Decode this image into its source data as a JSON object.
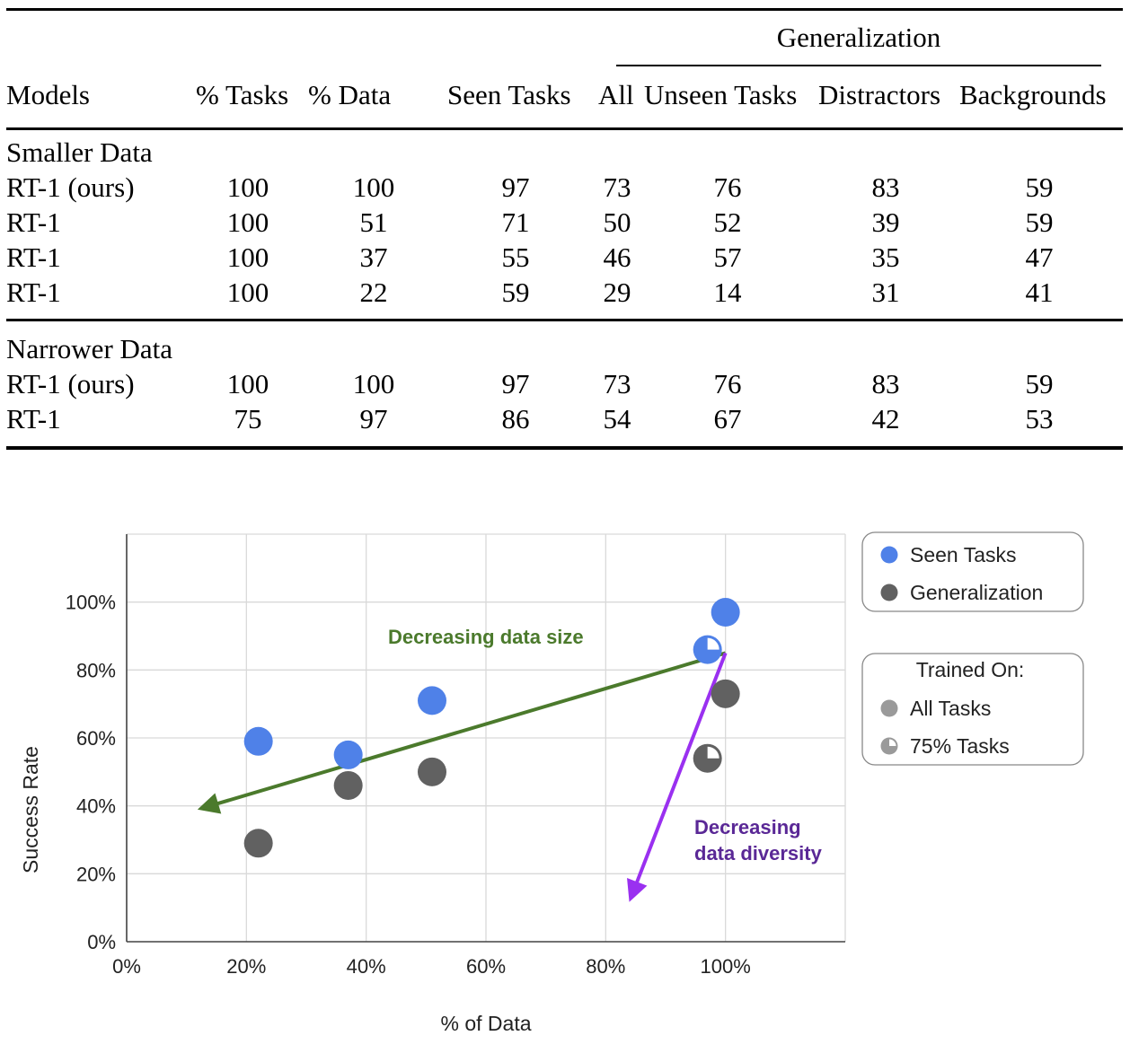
{
  "table": {
    "group_header": "Generalization",
    "columns": [
      "Models",
      "% Tasks",
      "% Data",
      "Seen Tasks",
      "All",
      "Unseen Tasks",
      "Distractors",
      "Backgrounds"
    ],
    "sections": [
      {
        "title": "Smaller Data",
        "rows": [
          [
            "RT-1 (ours)",
            "100",
            "100",
            "97",
            "73",
            "76",
            "83",
            "59"
          ],
          [
            "RT-1",
            "100",
            "51",
            "71",
            "50",
            "52",
            "39",
            "59"
          ],
          [
            "RT-1",
            "100",
            "37",
            "55",
            "46",
            "57",
            "35",
            "47"
          ],
          [
            "RT-1",
            "100",
            "22",
            "59",
            "29",
            "14",
            "31",
            "41"
          ]
        ]
      },
      {
        "title": "Narrower Data",
        "rows": [
          [
            "RT-1 (ours)",
            "100",
            "100",
            "97",
            "73",
            "76",
            "83",
            "59"
          ],
          [
            "RT-1",
            "75",
            "97",
            "86",
            "54",
            "67",
            "42",
            "53"
          ]
        ]
      }
    ]
  },
  "chart_data": {
    "type": "scatter",
    "xlabel": "% of Data",
    "ylabel": "Success Rate",
    "xlim": [
      0,
      120
    ],
    "ylim": [
      0,
      120
    ],
    "x_ticks": [
      "0%",
      "20%",
      "40%",
      "60%",
      "80%",
      "100%"
    ],
    "y_ticks": [
      "0%",
      "20%",
      "40%",
      "60%",
      "80%",
      "100%"
    ],
    "grid": true,
    "series": [
      {
        "name": "Seen Tasks",
        "color": "#4f81e8",
        "points": [
          {
            "x": 22,
            "y": 59,
            "trained_on": "All Tasks"
          },
          {
            "x": 37,
            "y": 55,
            "trained_on": "All Tasks"
          },
          {
            "x": 51,
            "y": 71,
            "trained_on": "All Tasks"
          },
          {
            "x": 97,
            "y": 86,
            "trained_on": "75% Tasks"
          },
          {
            "x": 100,
            "y": 97,
            "trained_on": "All Tasks"
          }
        ]
      },
      {
        "name": "Generalization",
        "color": "#616161",
        "points": [
          {
            "x": 22,
            "y": 29,
            "trained_on": "All Tasks"
          },
          {
            "x": 37,
            "y": 46,
            "trained_on": "All Tasks"
          },
          {
            "x": 51,
            "y": 50,
            "trained_on": "All Tasks"
          },
          {
            "x": 97,
            "y": 54,
            "trained_on": "75% Tasks"
          },
          {
            "x": 100,
            "y": 73,
            "trained_on": "All Tasks"
          }
        ]
      }
    ],
    "legend_series": [
      "Seen Tasks",
      "Generalization"
    ],
    "legend_trained": {
      "title": "Trained On:",
      "items": [
        "All Tasks",
        "75% Tasks"
      ]
    },
    "legend_placement": "right",
    "annotations": [
      {
        "text": "Decreasing data size",
        "color": "#4b7a2c",
        "from": [
          100,
          85
        ],
        "to": [
          12,
          39
        ]
      },
      {
        "lines": [
          "Decreasing",
          "data diversity"
        ],
        "color": "#9a30f0",
        "text_color": "#5a2896",
        "from": [
          100,
          85
        ],
        "to": [
          84,
          12
        ]
      }
    ]
  }
}
